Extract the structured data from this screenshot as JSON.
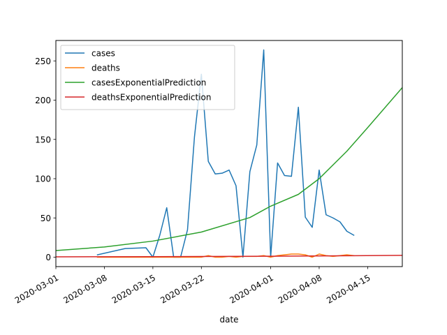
{
  "chart_data": {
    "type": "line",
    "title": "",
    "xlabel": "date",
    "ylabel": "",
    "xlim": [
      "2020-03-01",
      "2020-04-20"
    ],
    "ylim": [
      -12,
      276
    ],
    "x_ticks": [
      "2020-03-01",
      "2020-03-08",
      "2020-03-15",
      "2020-03-22",
      "2020-04-01",
      "2020-04-08",
      "2020-04-15"
    ],
    "y_ticks": [
      0,
      50,
      100,
      150,
      200,
      250
    ],
    "grid": false,
    "legend_position": "top-left",
    "series": [
      {
        "name": "cases",
        "color": "#1f77b4",
        "points": [
          [
            "2020-03-07",
            3
          ],
          [
            "2020-03-11",
            11
          ],
          [
            "2020-03-14",
            12
          ],
          [
            "2020-03-15",
            0
          ],
          [
            "2020-03-16",
            28
          ],
          [
            "2020-03-17",
            63
          ],
          [
            "2020-03-18",
            0
          ],
          [
            "2020-03-19",
            0
          ],
          [
            "2020-03-20",
            35
          ],
          [
            "2020-03-21",
            153
          ],
          [
            "2020-03-22",
            233
          ],
          [
            "2020-03-23",
            122
          ],
          [
            "2020-03-24",
            106
          ],
          [
            "2020-03-25",
            107
          ],
          [
            "2020-03-26",
            111
          ],
          [
            "2020-03-27",
            91
          ],
          [
            "2020-03-28",
            0
          ],
          [
            "2020-03-29",
            109
          ],
          [
            "2020-03-30",
            143
          ],
          [
            "2020-03-31",
            264
          ],
          [
            "2020-04-01",
            0
          ],
          [
            "2020-04-02",
            120
          ],
          [
            "2020-04-03",
            104
          ],
          [
            "2020-04-04",
            103
          ],
          [
            "2020-04-05",
            191
          ],
          [
            "2020-04-06",
            51
          ],
          [
            "2020-04-07",
            38
          ],
          [
            "2020-04-08",
            111
          ],
          [
            "2020-04-09",
            54
          ],
          [
            "2020-04-10",
            50
          ],
          [
            "2020-04-11",
            45
          ],
          [
            "2020-04-12",
            33
          ],
          [
            "2020-04-13",
            28
          ]
        ]
      },
      {
        "name": "deaths",
        "color": "#ff7f0e",
        "points": [
          [
            "2020-03-07",
            0
          ],
          [
            "2020-03-15",
            0
          ],
          [
            "2020-03-22",
            0
          ],
          [
            "2020-03-23",
            2
          ],
          [
            "2020-03-24",
            0
          ],
          [
            "2020-03-25",
            0
          ],
          [
            "2020-03-26",
            1
          ],
          [
            "2020-03-27",
            0
          ],
          [
            "2020-03-28",
            1
          ],
          [
            "2020-03-29",
            1
          ],
          [
            "2020-03-30",
            1
          ],
          [
            "2020-03-31",
            2
          ],
          [
            "2020-04-01",
            0
          ],
          [
            "2020-04-02",
            2
          ],
          [
            "2020-04-03",
            3
          ],
          [
            "2020-04-04",
            4
          ],
          [
            "2020-04-05",
            4
          ],
          [
            "2020-04-06",
            3
          ],
          [
            "2020-04-07",
            0
          ],
          [
            "2020-04-08",
            4
          ],
          [
            "2020-04-09",
            2
          ],
          [
            "2020-04-10",
            1
          ],
          [
            "2020-04-11",
            2
          ],
          [
            "2020-04-12",
            3
          ],
          [
            "2020-04-13",
            2
          ]
        ]
      },
      {
        "name": "casesExponentialPrediction",
        "color": "#2ca02c",
        "points": [
          [
            "2020-03-01",
            8.5
          ],
          [
            "2020-03-08",
            13
          ],
          [
            "2020-03-15",
            20.5
          ],
          [
            "2020-03-22",
            32
          ],
          [
            "2020-03-29",
            50.5
          ],
          [
            "2020-04-01",
            65
          ],
          [
            "2020-04-05",
            80
          ],
          [
            "2020-04-08",
            100
          ],
          [
            "2020-04-12",
            135
          ],
          [
            "2020-04-15",
            165
          ],
          [
            "2020-04-20",
            216
          ]
        ]
      },
      {
        "name": "deathsExponentialPrediction",
        "color": "#d62728",
        "points": [
          [
            "2020-03-01",
            0.4
          ],
          [
            "2020-03-15",
            0.7
          ],
          [
            "2020-04-01",
            1.2
          ],
          [
            "2020-04-20",
            2.3
          ]
        ]
      }
    ]
  }
}
